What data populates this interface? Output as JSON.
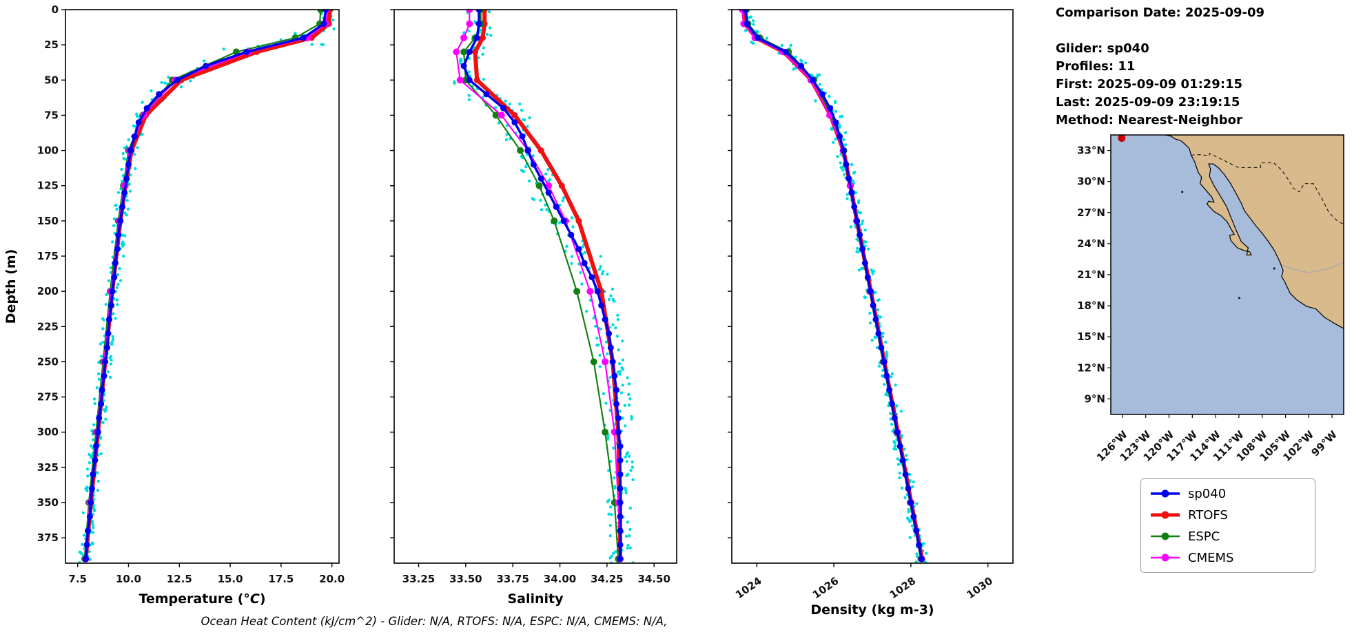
{
  "info_panel": {
    "comparison_date": "Comparison Date: 2025-09-09",
    "glider": "Glider: sp040",
    "profiles": "Profiles: 11",
    "first": "First: 2025-09-09 01:29:15",
    "last": "Last: 2025-09-09 23:19:15",
    "method": "Method: Nearest-Neighbor"
  },
  "footer": {
    "text": "Ocean Heat Content (kJ/cm^2) - Glider: N/A,  RTOFS: N/A,  ESPC: N/A,  CMEMS: N/A,"
  },
  "legend": {
    "items": [
      {
        "label": "sp040",
        "color": "#0000ee",
        "line_width": 3.5,
        "marker_r": 5.5
      },
      {
        "label": "RTOFS",
        "color": "#ee1111",
        "line_width": 5,
        "marker_r": 5.5
      },
      {
        "label": "ESPC",
        "color": "#118011",
        "line_width": 2.5,
        "marker_r": 5.5
      },
      {
        "label": "CMEMS",
        "color": "#ff00ff",
        "line_width": 2.5,
        "marker_r": 5.5
      }
    ]
  },
  "map": {
    "extent": {
      "lon_min": -127.5,
      "lon_max": -97.5,
      "lat_min": 7.5,
      "lat_max": 34.5
    },
    "lat_values": [
      33,
      30,
      27,
      24,
      21,
      18,
      15,
      12,
      9
    ],
    "lat_labels": [
      "33°N",
      "30°N",
      "27°N",
      "24°N",
      "21°N",
      "18°N",
      "15°N",
      "12°N",
      "9°N"
    ],
    "lon_values": [
      -126,
      -123,
      -120,
      -117,
      -114,
      -111,
      -108,
      -105,
      -102,
      -99
    ],
    "lon_labels": [
      "126°W",
      "123°W",
      "120°W",
      "117°W",
      "114°W",
      "111°W",
      "108°W",
      "105°W",
      "102°W",
      "99°W"
    ],
    "ocean_color": "#a6bcda",
    "land_color": "#d8ba8d",
    "marker": {
      "lon": -126.1,
      "lat": 34.2,
      "color": "#c40000"
    }
  },
  "depth_levels": {
    "hi": [
      0,
      10,
      20,
      30,
      40,
      50,
      60,
      70,
      80,
      90,
      100,
      110,
      120,
      130,
      140,
      150,
      160,
      170,
      180,
      190,
      200,
      210,
      220,
      230,
      240,
      250,
      260,
      270,
      280,
      290,
      300,
      310,
      320,
      330,
      340,
      350,
      360,
      370,
      380,
      390
    ],
    "model": [
      0,
      10,
      20,
      30,
      50,
      75,
      100,
      125,
      150,
      200,
      250,
      300,
      350,
      390
    ]
  },
  "chart_data": [
    {
      "type": "line",
      "name": "temperature",
      "title_parts": {
        "pre": "Temperature (",
        "italic": "°C",
        "post": ")"
      },
      "ylabel": "Depth (m)",
      "xlim": [
        6.9,
        20.35
      ],
      "xticks": [
        7.5,
        10.0,
        12.5,
        15.0,
        17.5,
        20.0
      ],
      "xtick_labels": [
        "7.5",
        "10.0",
        "12.5",
        "15.0",
        "17.5",
        "20.0"
      ],
      "xtick_rotation": false,
      "ylim": [
        0,
        393
      ],
      "yticks": [
        0,
        25,
        50,
        75,
        100,
        125,
        150,
        175,
        200,
        225,
        250,
        275,
        300,
        325,
        350,
        375
      ],
      "scatter": {
        "name": "glider-raw-profiles",
        "color": "#00dcdc",
        "jitter": 0.3,
        "gradient_factor": 10,
        "per_depth": 7
      },
      "series": [
        {
          "name": "sp040",
          "color": "#0000ee",
          "width": 3.5,
          "marker_r": 4.5,
          "depths_key": "hi",
          "values": [
            19.7,
            19.6,
            18.6,
            15.8,
            13.8,
            12.4,
            11.5,
            10.9,
            10.5,
            10.3,
            10.1,
            10.0,
            9.9,
            9.8,
            9.7,
            9.6,
            9.5,
            9.45,
            9.35,
            9.3,
            9.2,
            9.15,
            9.05,
            9.0,
            8.95,
            8.85,
            8.8,
            8.7,
            8.65,
            8.55,
            8.5,
            8.4,
            8.35,
            8.25,
            8.2,
            8.15,
            8.1,
            8.0,
            7.95,
            7.9
          ]
        },
        {
          "name": "RTOFS",
          "color": "#ee1111",
          "width": 6,
          "marker_r": 4.5,
          "depths_key": "model",
          "values": [
            19.9,
            19.85,
            19.0,
            16.3,
            12.6,
            10.85,
            10.15,
            9.85,
            9.6,
            9.2,
            8.85,
            8.5,
            8.15,
            7.9
          ]
        },
        {
          "name": "ESPC",
          "color": "#118011",
          "width": 2.2,
          "marker_r": 5,
          "depths_key": "model",
          "values": [
            19.45,
            19.4,
            18.2,
            15.3,
            12.15,
            10.7,
            10.0,
            9.75,
            9.5,
            9.1,
            8.75,
            8.4,
            8.05,
            7.85
          ]
        },
        {
          "name": "CMEMS",
          "color": "#ff00ff",
          "width": 2.2,
          "marker_r": 5,
          "depths_key": "model",
          "values": [
            19.75,
            19.7,
            18.8,
            15.9,
            12.3,
            10.75,
            10.05,
            9.8,
            9.55,
            9.15,
            8.8,
            8.45,
            8.1,
            7.9
          ]
        }
      ]
    },
    {
      "type": "line",
      "name": "salinity",
      "title": "Salinity",
      "xlim": [
        33.12,
        34.62
      ],
      "xticks": [
        33.25,
        33.5,
        33.75,
        34.0,
        34.25,
        34.5
      ],
      "xtick_labels": [
        "33.25",
        "33.50",
        "33.75",
        "34.00",
        "34.25",
        "34.50"
      ],
      "xtick_rotation": false,
      "ylim": [
        0,
        393
      ],
      "yticks": [
        0,
        25,
        50,
        75,
        100,
        125,
        150,
        175,
        200,
        225,
        250,
        275,
        300,
        325,
        350,
        375
      ],
      "scatter": {
        "name": "glider-raw-profiles",
        "color": "#00dcdc",
        "jitter": 0.07,
        "gradient_factor": 5,
        "per_depth": 7
      },
      "series": [
        {
          "name": "sp040",
          "color": "#0000ee",
          "width": 3.5,
          "marker_r": 4.5,
          "depths_key": "hi",
          "values": [
            33.57,
            33.57,
            33.56,
            33.52,
            33.49,
            33.52,
            33.61,
            33.7,
            33.76,
            33.8,
            33.83,
            33.86,
            33.9,
            33.94,
            33.98,
            34.02,
            34.06,
            34.1,
            34.13,
            34.17,
            34.2,
            34.22,
            34.24,
            34.26,
            34.27,
            34.28,
            34.29,
            34.3,
            34.3,
            34.31,
            34.31,
            34.32,
            34.32,
            34.32,
            34.32,
            34.32,
            34.32,
            34.32,
            34.32,
            34.32
          ]
        },
        {
          "name": "RTOFS",
          "color": "#ee1111",
          "width": 6,
          "marker_r": 4.5,
          "depths_key": "model",
          "values": [
            33.6,
            33.6,
            33.59,
            33.55,
            33.56,
            33.76,
            33.9,
            34.01,
            34.1,
            34.22,
            34.28,
            34.31,
            34.32,
            34.32
          ]
        },
        {
          "name": "ESPC",
          "color": "#118011",
          "width": 2.2,
          "marker_r": 5,
          "depths_key": "model",
          "values": [
            33.58,
            33.58,
            33.55,
            33.49,
            33.5,
            33.66,
            33.79,
            33.89,
            33.97,
            34.09,
            34.18,
            34.24,
            34.29,
            34.31
          ]
        },
        {
          "name": "CMEMS",
          "color": "#ff00ff",
          "width": 2.2,
          "marker_r": 5,
          "depths_key": "model",
          "values": [
            33.52,
            33.52,
            33.49,
            33.45,
            33.47,
            33.69,
            33.83,
            33.94,
            34.03,
            34.16,
            34.24,
            34.29,
            34.31,
            34.32
          ]
        }
      ]
    },
    {
      "type": "line",
      "name": "density",
      "title": "Density (kg m-3)",
      "xlim": [
        1023.35,
        1030.65
      ],
      "xticks": [
        1024,
        1026,
        1028,
        1030
      ],
      "xtick_labels": [
        "1024",
        "1026",
        "1028",
        "1030"
      ],
      "xtick_rotation": true,
      "ylim": [
        0,
        393
      ],
      "yticks": [
        0,
        25,
        50,
        75,
        100,
        125,
        150,
        175,
        200,
        225,
        250,
        275,
        300,
        325,
        350,
        375
      ],
      "scatter": {
        "name": "glider-raw-profiles",
        "color": "#00dcdc",
        "jitter": 0.15,
        "gradient_factor": 6,
        "per_depth": 7
      },
      "series": [
        {
          "name": "sp040",
          "color": "#0000ee",
          "width": 3.5,
          "marker_r": 4.5,
          "depths_key": "hi",
          "values": [
            1023.7,
            1023.74,
            1024.02,
            1024.75,
            1025.15,
            1025.45,
            1025.7,
            1025.9,
            1026.05,
            1026.15,
            1026.25,
            1026.32,
            1026.39,
            1026.46,
            1026.53,
            1026.6,
            1026.67,
            1026.74,
            1026.81,
            1026.88,
            1026.95,
            1027.02,
            1027.09,
            1027.16,
            1027.23,
            1027.3,
            1027.37,
            1027.44,
            1027.51,
            1027.58,
            1027.65,
            1027.72,
            1027.79,
            1027.86,
            1027.93,
            1028.0,
            1028.07,
            1028.14,
            1028.21,
            1028.28
          ]
        },
        {
          "name": "RTOFS",
          "color": "#ee1111",
          "width": 6,
          "marker_r": 4.5,
          "depths_key": "model",
          "values": [
            1023.65,
            1023.69,
            1023.98,
            1024.7,
            1025.42,
            1025.91,
            1026.25,
            1026.43,
            1026.6,
            1026.96,
            1027.31,
            1027.66,
            1028.01,
            1028.29
          ]
        },
        {
          "name": "ESPC",
          "color": "#118011",
          "width": 2.2,
          "marker_r": 5,
          "depths_key": "model",
          "values": [
            1023.73,
            1023.77,
            1024.08,
            1024.82,
            1025.48,
            1025.93,
            1026.26,
            1026.43,
            1026.59,
            1026.93,
            1027.28,
            1027.63,
            1027.98,
            1028.26
          ]
        },
        {
          "name": "CMEMS",
          "color": "#ff00ff",
          "width": 2.2,
          "marker_r": 5,
          "depths_key": "model",
          "values": [
            1023.62,
            1023.66,
            1023.95,
            1024.68,
            1025.4,
            1025.89,
            1026.24,
            1026.42,
            1026.59,
            1026.94,
            1027.3,
            1027.65,
            1028.0,
            1028.28
          ]
        }
      ]
    }
  ]
}
